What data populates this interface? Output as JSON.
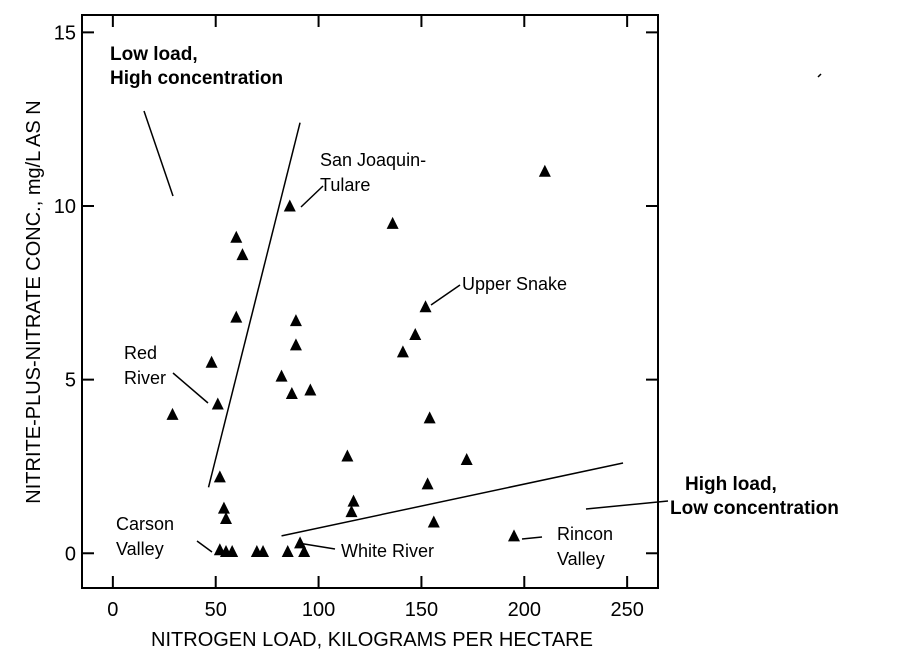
{
  "chart_data": {
    "type": "scatter",
    "xlabel": "NITROGEN LOAD, KILOGRAMS PER HECTARE",
    "ylabel": "NITRITE-PLUS-NITRATE CONC., mg/L AS N",
    "xlim": [
      -15,
      265
    ],
    "ylim": [
      -1,
      15.5
    ],
    "xticks": [
      0,
      50,
      100,
      150,
      200,
      250
    ],
    "yticks": [
      0,
      5,
      10,
      15
    ],
    "grid": false,
    "marker": "triangle",
    "series": [
      {
        "points": [
          [
            29,
            4.0
          ],
          [
            48,
            5.5
          ],
          [
            51,
            4.3
          ],
          [
            52,
            2.2
          ],
          [
            54,
            1.3
          ],
          [
            55,
            1.0
          ],
          [
            52,
            0.1
          ],
          [
            55,
            0.05
          ],
          [
            58,
            0.05
          ],
          [
            60,
            9.1
          ],
          [
            63,
            8.6
          ],
          [
            60,
            6.8
          ],
          [
            70,
            0.05
          ],
          [
            73,
            0.05
          ],
          [
            82,
            5.1
          ],
          [
            86,
            10.0
          ],
          [
            87,
            4.6
          ],
          [
            89,
            6.7
          ],
          [
            89,
            6.0
          ],
          [
            96,
            4.7
          ],
          [
            85,
            0.05
          ],
          [
            91,
            0.3
          ],
          [
            93,
            0.05
          ],
          [
            114,
            2.8
          ],
          [
            116,
            1.2
          ],
          [
            117,
            1.5
          ],
          [
            136,
            9.5
          ],
          [
            141,
            5.8
          ],
          [
            147,
            6.3
          ],
          [
            152,
            7.1
          ],
          [
            153,
            2.0
          ],
          [
            154,
            3.9
          ],
          [
            156,
            0.9
          ],
          [
            172,
            2.7
          ],
          [
            195,
            0.5
          ],
          [
            210,
            11.0
          ]
        ]
      }
    ],
    "annotations": [
      {
        "id": "low-load",
        "line1": "Low load,",
        "line2": "High concentration"
      },
      {
        "id": "high-load",
        "line1": "High load,",
        "line2": "Low concentration"
      },
      {
        "id": "san-joaquin",
        "line1": "San Joaquin-",
        "line2": "Tulare"
      },
      {
        "id": "upper-snake",
        "line1": "Upper Snake"
      },
      {
        "id": "red-river",
        "line1": "Red",
        "line2": "River"
      },
      {
        "id": "carson-valley",
        "line1": "Carson",
        "line2": "Valley"
      },
      {
        "id": "white-river",
        "line1": "White River"
      },
      {
        "id": "rincon-valley",
        "line1": "Rincon",
        "line2": "Valley"
      }
    ],
    "reference_lines": [
      {
        "id": "steep-line",
        "from": [
          46.5,
          1.9
        ],
        "to": [
          91,
          12.4
        ]
      },
      {
        "id": "shallow-line",
        "from": [
          82,
          0.5
        ],
        "to": [
          248,
          2.6
        ]
      }
    ]
  }
}
